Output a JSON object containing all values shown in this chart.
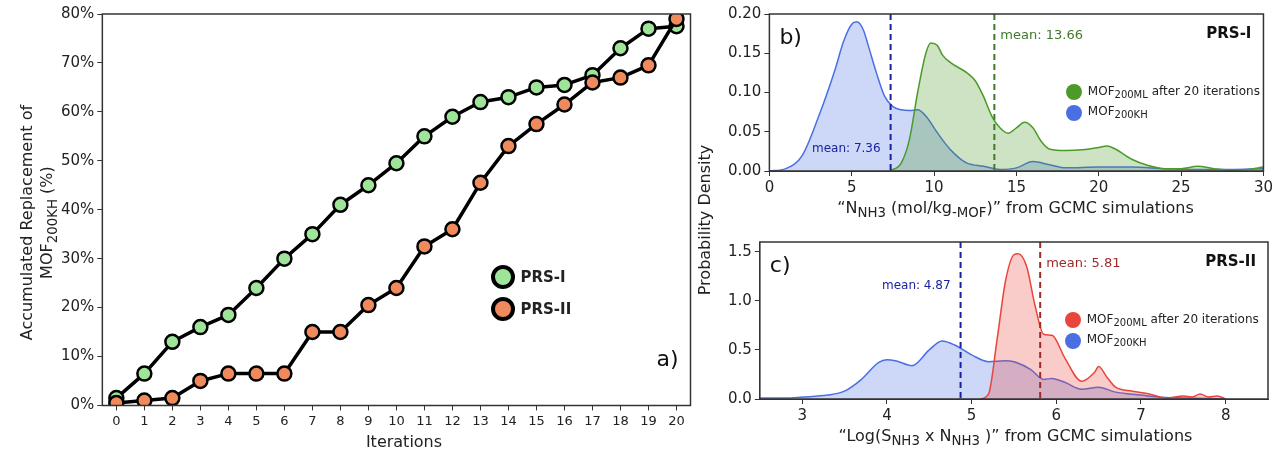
{
  "chart_data": [
    {
      "type": "line",
      "xlabel": "Iterations",
      "ylabel": "Accumulated Replacement of MOF$_{200KH}$ (%)",
      "x": [
        0,
        1,
        2,
        3,
        4,
        5,
        6,
        7,
        8,
        9,
        10,
        11,
        12,
        13,
        14,
        15,
        16,
        17,
        18,
        19,
        20
      ],
      "xlim": [
        -0.5,
        20.5
      ],
      "xticks": [
        0,
        1,
        2,
        3,
        4,
        5,
        6,
        7,
        8,
        9,
        10,
        11,
        12,
        13,
        14,
        15,
        16,
        17,
        18,
        19,
        20
      ],
      "series": [
        {
          "name": "PRS-I",
          "color": "#9ee59a",
          "values": [
            1.5,
            6.5,
            13,
            16,
            18.5,
            24,
            30,
            35,
            41,
            45,
            49.5,
            55,
            59,
            62,
            63,
            65,
            65.5,
            67.5,
            73,
            77,
            77.5
          ]
        },
        {
          "name": "PRS-II",
          "color": "#f08a5d",
          "values": [
            0.5,
            1,
            1.5,
            5,
            6.5,
            6.5,
            6.5,
            15,
            15,
            20.5,
            24,
            32.5,
            36,
            45.5,
            53,
            57.5,
            61.5,
            66,
            67,
            69.5,
            79
          ]
        }
      ],
      "ylim": [
        0,
        80
      ],
      "yticks": [
        {
          "value": 0,
          "label": "0%"
        },
        {
          "value": 10,
          "label": "10%"
        },
        {
          "value": 20,
          "label": "20%"
        },
        {
          "value": 30,
          "label": "30%"
        },
        {
          "value": 40,
          "label": "40%"
        },
        {
          "value": 50,
          "label": "50%"
        },
        {
          "value": 60,
          "label": "60%"
        },
        {
          "value": 70,
          "label": "70%"
        },
        {
          "value": 80,
          "label": "80%"
        }
      ],
      "marker": "circle",
      "legend": "center right",
      "annotations": [
        "a)"
      ]
    },
    {
      "type": "area",
      "xlabel": "“N$_{NH3}$ (mol/kg$_{-MOF}$)” from GCMC simulations",
      "ylabel": "Probability Density",
      "series": [
        {
          "name": "MOF$_{200ML}$ after 20 iterations",
          "color": "#4c9a2a",
          "x": [
            7.3,
            8,
            8.5,
            9,
            9.5,
            9.8,
            10.2,
            10.5,
            11,
            12,
            12.5,
            13,
            13.5,
            14,
            14.5,
            15,
            15.5,
            16,
            16.5,
            17,
            18,
            19,
            20,
            20.5,
            21,
            22,
            23,
            24,
            25,
            26,
            27,
            28,
            29,
            30
          ],
          "values": [
            0,
            0.01,
            0.04,
            0.1,
            0.15,
            0.163,
            0.16,
            0.148,
            0.138,
            0.125,
            0.115,
            0.095,
            0.07,
            0.055,
            0.048,
            0.055,
            0.062,
            0.055,
            0.038,
            0.028,
            0.026,
            0.027,
            0.03,
            0.032,
            0.028,
            0.015,
            0.007,
            0.003,
            0.003,
            0.006,
            0.003,
            0.001,
            0.002,
            0.005
          ]
        },
        {
          "name": "MOF$_{200KH}$",
          "color": "#4a6fe3",
          "x": [
            0,
            1,
            2,
            3,
            4,
            4.5,
            5,
            5.3,
            5.7,
            6,
            6.5,
            7,
            7.5,
            8,
            8.5,
            9,
            9.5,
            10,
            10.5,
            11,
            11.5,
            12,
            13,
            14,
            15,
            16,
            17,
            18,
            20,
            22,
            24,
            26,
            28,
            30
          ],
          "values": [
            0,
            0.003,
            0.02,
            0.07,
            0.13,
            0.165,
            0.187,
            0.19,
            0.18,
            0.16,
            0.125,
            0.095,
            0.082,
            0.078,
            0.077,
            0.078,
            0.07,
            0.055,
            0.04,
            0.027,
            0.017,
            0.01,
            0.006,
            0.002,
            0.004,
            0.012,
            0.008,
            0.004,
            0.005,
            0.005,
            0.003,
            0.002,
            0.002,
            0.003
          ]
        }
      ],
      "xlim": [
        0,
        30
      ],
      "xticks": [
        0,
        5,
        10,
        15,
        20,
        25,
        30
      ],
      "ylim": [
        0,
        0.2
      ],
      "yticks": [
        {
          "value": 0,
          "label": "0.00"
        },
        {
          "value": 0.05,
          "label": "0.05"
        },
        {
          "value": 0.1,
          "label": "0.10"
        },
        {
          "value": 0.15,
          "label": "0.15"
        },
        {
          "value": 0.2,
          "label": "0.20"
        }
      ],
      "ref_lines": [
        {
          "axis": "x",
          "value": 7.36,
          "label": "mean: 7.36",
          "color": "#1a22a0",
          "line_style": "dashed"
        },
        {
          "axis": "x",
          "value": 13.66,
          "label": "mean: 13.66",
          "color": "#3f7a2a",
          "line_style": "dashed"
        }
      ],
      "marker": "none",
      "legend": "right",
      "annotations": [
        "b)",
        "PRS-I"
      ]
    },
    {
      "type": "area",
      "xlabel": "“Log(S$_{NH3}$ x N$_{NH3}$ )” from GCMC simulations",
      "series": [
        {
          "name": "MOF$_{200ML}$ after 20 iterations",
          "color": "#e8453c",
          "x": [
            5.1,
            5.2,
            5.3,
            5.4,
            5.5,
            5.55,
            5.65,
            5.75,
            5.85,
            5.95,
            6.1,
            6.3,
            6.45,
            6.5,
            6.6,
            6.7,
            6.9,
            7.1,
            7.3,
            7.5,
            7.6,
            7.7,
            7.8,
            7.9,
            8
          ],
          "values": [
            0,
            0.05,
            0.6,
            1.2,
            1.47,
            1.48,
            1.35,
            0.95,
            0.66,
            0.65,
            0.42,
            0.18,
            0.27,
            0.33,
            0.22,
            0.12,
            0.08,
            0.05,
            0.01,
            0.03,
            0.02,
            0.05,
            0.02,
            0.03,
            0
          ]
        },
        {
          "name": "MOF$_{200KH}$",
          "color": "#4a6fe3",
          "x": [
            2.5,
            2.8,
            3,
            3.3,
            3.5,
            3.7,
            3.9,
            4,
            4.1,
            4.3,
            4.5,
            4.65,
            4.8,
            5,
            5.2,
            5.4,
            5.5,
            5.7,
            5.85,
            5.95,
            6.1,
            6.3,
            6.5,
            6.7,
            7,
            7.2,
            7.5,
            8
          ],
          "values": [
            0.01,
            0.01,
            0.02,
            0.04,
            0.08,
            0.2,
            0.37,
            0.4,
            0.39,
            0.34,
            0.5,
            0.59,
            0.55,
            0.45,
            0.38,
            0.39,
            0.38,
            0.3,
            0.2,
            0.21,
            0.17,
            0.1,
            0.12,
            0.07,
            0.04,
            0.02,
            0.01,
            0
          ]
        }
      ],
      "xlim": [
        2.5,
        8.5
      ],
      "xticks": [
        3,
        4,
        5,
        6,
        7,
        8
      ],
      "ylim": [
        0,
        1.6
      ],
      "yticks": [
        {
          "value": 0,
          "label": "0.0"
        },
        {
          "value": 0.5,
          "label": "0.5"
        },
        {
          "value": 1,
          "label": "1.0"
        },
        {
          "value": 1.5,
          "label": "1.5"
        }
      ],
      "ref_lines": [
        {
          "axis": "x",
          "value": 4.87,
          "label": "mean: 4.87",
          "color": "#1a22a0",
          "line_style": "dashed"
        },
        {
          "axis": "x",
          "value": 5.81,
          "label": "mean: 5.81",
          "color": "#9e2a2a",
          "line_style": "dashed"
        }
      ],
      "marker": "none",
      "legend": "right",
      "annotations": [
        "c)",
        "PRS-II"
      ]
    }
  ]
}
